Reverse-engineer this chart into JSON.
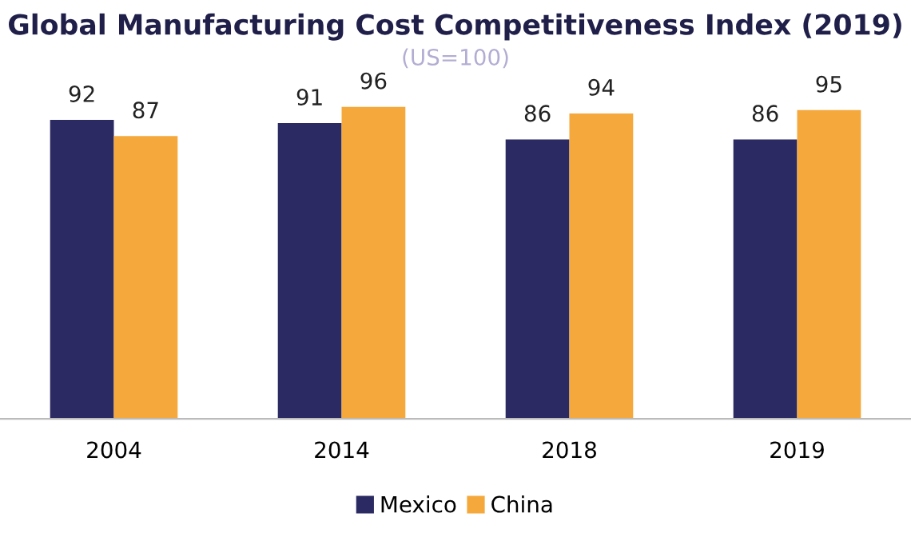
{
  "chart_data": {
    "type": "bar",
    "title": "Global Manufacturing Cost Competitiveness Index (2019)",
    "subtitle": "(US=100)",
    "categories": [
      "2004",
      "2014",
      "2018",
      "2019"
    ],
    "series": [
      {
        "name": "Mexico",
        "color": "#2b2a62",
        "values": [
          92,
          91,
          86,
          86
        ]
      },
      {
        "name": "China",
        "color": "#f5a83b",
        "values": [
          87,
          96,
          94,
          95
        ]
      }
    ],
    "tick_labels": "x",
    "data_labels": true,
    "grid": false,
    "legend": "bottom"
  }
}
